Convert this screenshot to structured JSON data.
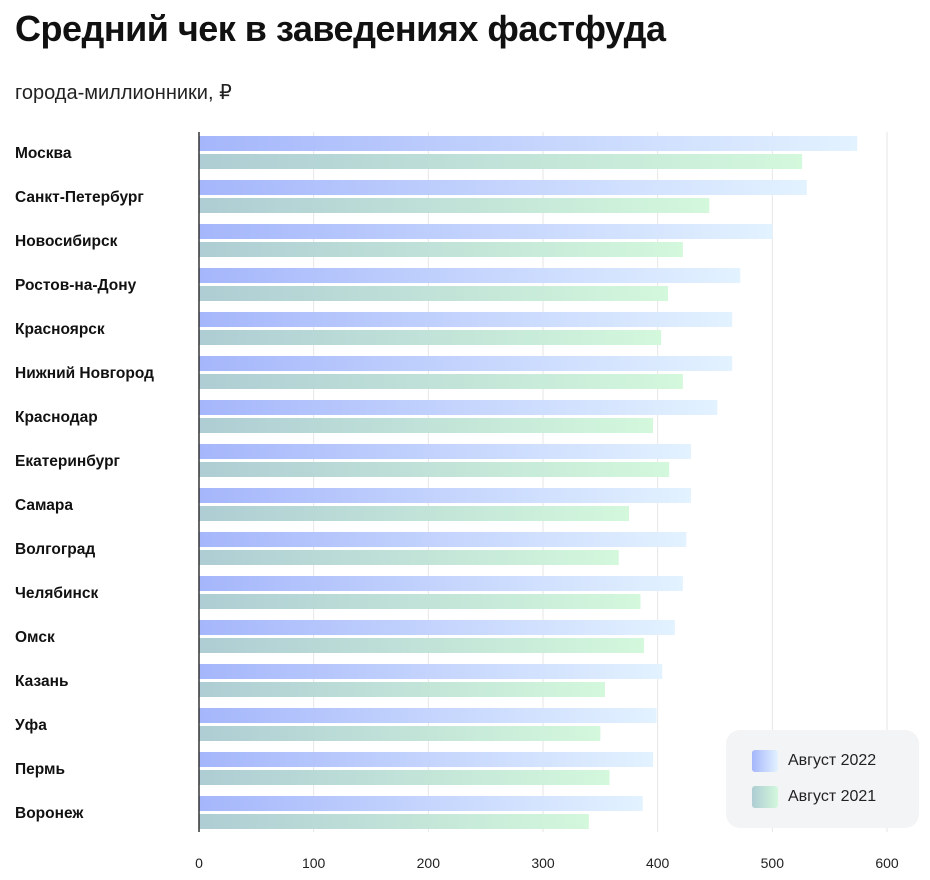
{
  "title": "Средний чек в заведениях фастфуда",
  "subtitle": "города-миллионники, ₽",
  "colors": {
    "series_2022_start": "#a5b6fb",
    "series_2022_end": "#e3f2ff",
    "series_2021_start": "#aecdd4",
    "series_2021_end": "#d3f8dc",
    "grid": "#e6e6e6",
    "axis": "#333333"
  },
  "chart_data": {
    "type": "bar",
    "orientation": "horizontal",
    "categories": [
      "Москва",
      "Санкт-Петербург",
      "Новосибирск",
      "Ростов-на-Дону",
      "Красноярск",
      "Нижний Новгород",
      "Краснодар",
      "Екатеринбург",
      "Самара",
      "Волгоград",
      "Челябинск",
      "Омск",
      "Казань",
      "Уфа",
      "Пермь",
      "Воронеж"
    ],
    "series": [
      {
        "name": "Август 2022",
        "values": [
          574,
          530,
          500,
          472,
          465,
          465,
          452,
          429,
          429,
          425,
          422,
          415,
          404,
          399,
          396,
          387
        ]
      },
      {
        "name": "Август 2021",
        "values": [
          526,
          445,
          422,
          409,
          403,
          422,
          396,
          410,
          375,
          366,
          385,
          388,
          354,
          350,
          358,
          340
        ]
      }
    ],
    "xlim": [
      0,
      600
    ],
    "xticks": [
      0,
      100,
      200,
      300,
      400,
      500,
      600
    ],
    "grid": true,
    "legend_position": "bottom-right"
  },
  "legend": {
    "items": [
      {
        "label": "Август 2022"
      },
      {
        "label": "Август 2021"
      }
    ]
  }
}
